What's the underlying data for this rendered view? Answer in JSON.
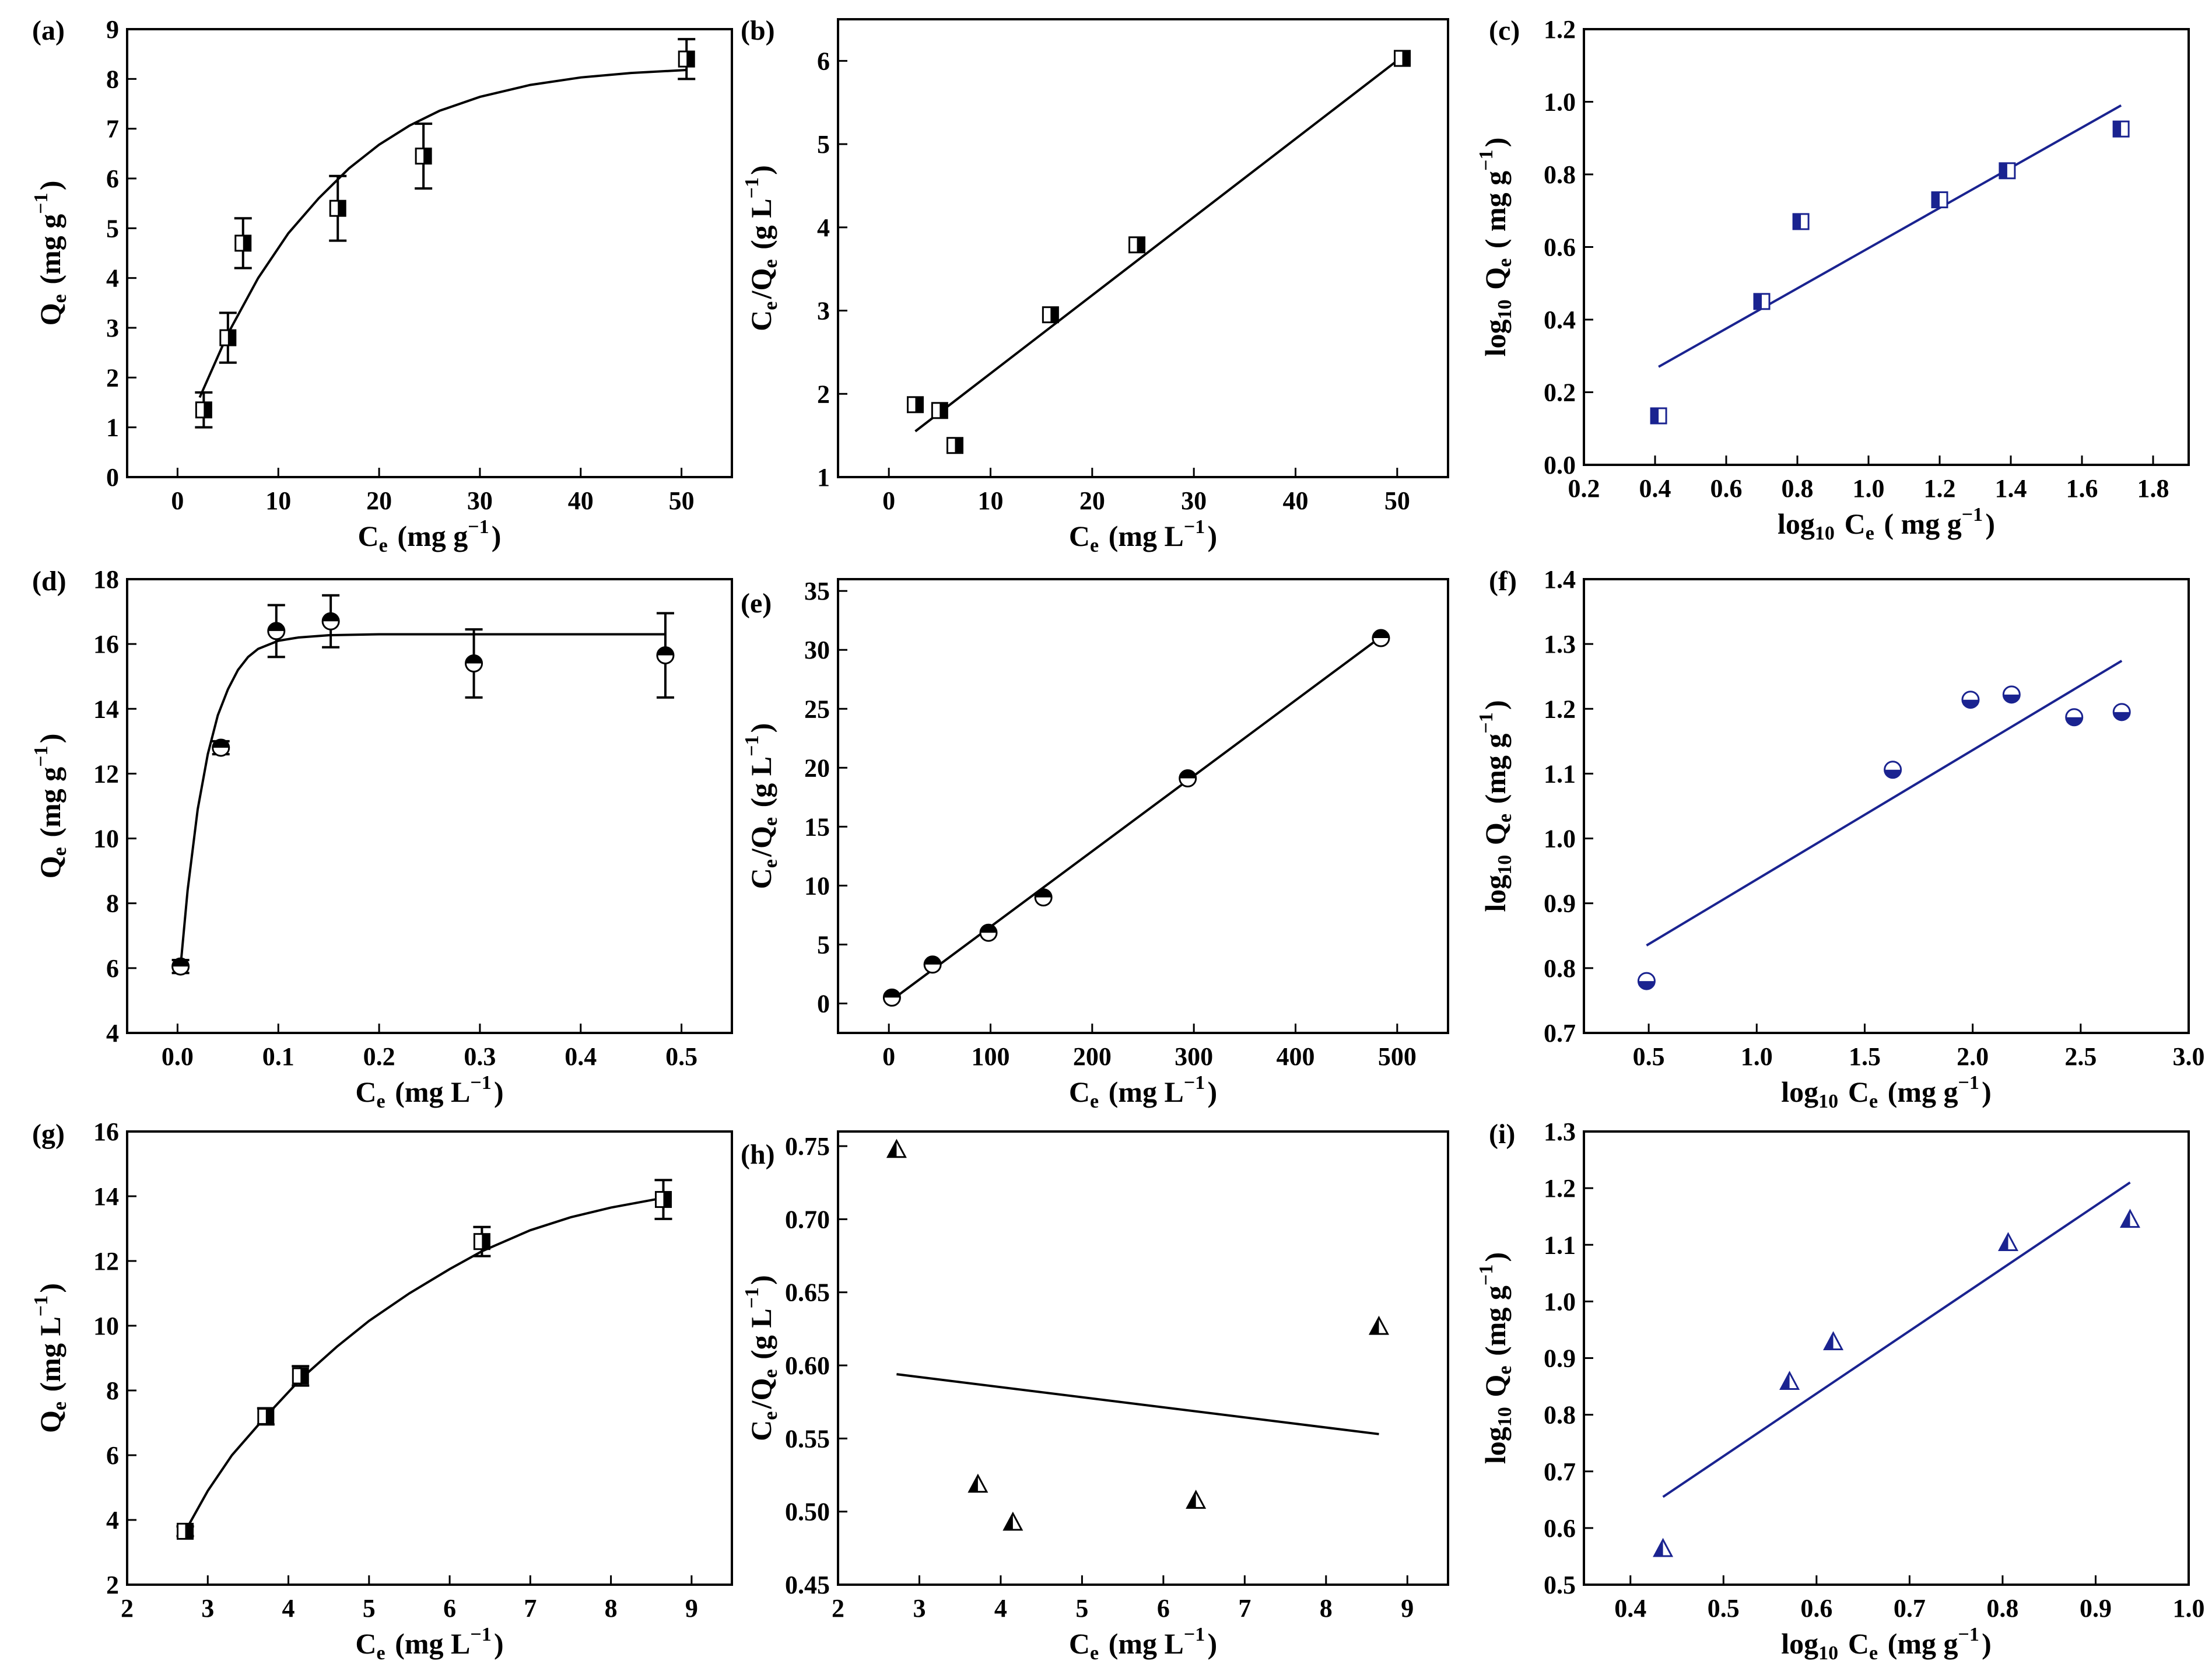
{
  "colors": {
    "black": "#000000",
    "blue": "#1a2390",
    "background": "#ffffff"
  },
  "chart_data": [
    {
      "id": "a",
      "panel_label": "(a)",
      "type": "scatter",
      "xlabel": {
        "parts": [
          [
            "C",
            ""
          ],
          [
            "e",
            "sub"
          ],
          [
            " (mg g",
            ""
          ],
          [
            "−1",
            "sup"
          ],
          [
            ")",
            ""
          ]
        ]
      },
      "ylabel": {
        "parts": [
          [
            "Q",
            ""
          ],
          [
            "e",
            "sub"
          ],
          [
            " (mg g",
            ""
          ],
          [
            "−1",
            "sup"
          ],
          [
            ")",
            ""
          ]
        ]
      },
      "xlim": [
        -5,
        55
      ],
      "ylim": [
        0,
        9
      ],
      "xticks": [
        0,
        10,
        20,
        30,
        40,
        50
      ],
      "yticks": [
        0,
        1,
        2,
        3,
        4,
        5,
        6,
        7,
        8,
        9
      ],
      "marker": "square-half-right",
      "color": "#000000",
      "points": [
        {
          "x": 2.6,
          "y": 1.35,
          "err": 0.35
        },
        {
          "x": 5.0,
          "y": 2.8,
          "err": 0.5
        },
        {
          "x": 6.5,
          "y": 4.7,
          "err": 0.5
        },
        {
          "x": 15.9,
          "y": 5.4,
          "err": 0.65
        },
        {
          "x": 24.4,
          "y": 6.45,
          "err": 0.65
        },
        {
          "x": 50.5,
          "y": 8.4,
          "err": 0.4
        }
      ],
      "fit": {
        "kind": "curve",
        "x": [
          2.2,
          5,
          8,
          11,
          14,
          17,
          20,
          23,
          26,
          30,
          35,
          40,
          45,
          50.5
        ],
        "y": [
          1.6,
          2.88,
          4.0,
          4.9,
          5.6,
          6.2,
          6.68,
          7.06,
          7.36,
          7.64,
          7.88,
          8.03,
          8.12,
          8.18
        ]
      }
    },
    {
      "id": "b",
      "panel_label": "(b)",
      "type": "scatter",
      "xlabel": {
        "parts": [
          [
            "C",
            ""
          ],
          [
            "e",
            "sub"
          ],
          [
            " (mg L",
            ""
          ],
          [
            "−1",
            "sup"
          ],
          [
            ")",
            ""
          ]
        ]
      },
      "ylabel": {
        "parts": [
          [
            "C",
            ""
          ],
          [
            "e",
            "sub"
          ],
          [
            "/Q",
            ""
          ],
          [
            "e",
            "sub"
          ],
          [
            " (g L",
            ""
          ],
          [
            "−1",
            "sup"
          ],
          [
            ")",
            ""
          ]
        ]
      },
      "xlim": [
        -5,
        55
      ],
      "ylim": [
        1,
        6.5
      ],
      "xticks": [
        0,
        10,
        20,
        30,
        40,
        50
      ],
      "yticks": [
        1,
        2,
        3,
        4,
        5,
        6
      ],
      "marker": "square-half-right",
      "color": "#000000",
      "points": [
        {
          "x": 2.6,
          "y": 1.87
        },
        {
          "x": 5.0,
          "y": 1.8
        },
        {
          "x": 6.5,
          "y": 1.38
        },
        {
          "x": 15.9,
          "y": 2.95
        },
        {
          "x": 24.4,
          "y": 3.79
        },
        {
          "x": 50.5,
          "y": 6.03
        }
      ],
      "fit": {
        "kind": "line",
        "x": [
          2.6,
          50.5
        ],
        "y": [
          1.55,
          6.05
        ]
      }
    },
    {
      "id": "c",
      "panel_label": "(c)",
      "type": "scatter",
      "xlabel": {
        "parts": [
          [
            "log",
            ""
          ],
          [
            "10",
            "sub"
          ],
          [
            " C",
            ""
          ],
          [
            "e",
            "sub"
          ],
          [
            " ( mg g",
            ""
          ],
          [
            "−1",
            "sup"
          ],
          [
            ")",
            ""
          ]
        ]
      },
      "ylabel": {
        "parts": [
          [
            "log",
            ""
          ],
          [
            "10",
            "sub"
          ],
          [
            " Q",
            ""
          ],
          [
            "e",
            "sub"
          ],
          [
            " ( mg g",
            ""
          ],
          [
            "−1",
            "sup"
          ],
          [
            ")",
            ""
          ]
        ]
      },
      "xlim": [
        0.2,
        1.9
      ],
      "ylim": [
        0.0,
        1.2
      ],
      "xticks": [
        0.2,
        0.4,
        0.6,
        0.8,
        1.0,
        1.2,
        1.4,
        1.6,
        1.8
      ],
      "yticks": [
        0.0,
        0.2,
        0.4,
        0.6,
        0.8,
        1.0,
        1.2
      ],
      "marker": "square-half-left",
      "color": "#1a2390",
      "points": [
        {
          "x": 0.41,
          "y": 0.135
        },
        {
          "x": 0.7,
          "y": 0.45
        },
        {
          "x": 0.81,
          "y": 0.67
        },
        {
          "x": 1.2,
          "y": 0.73
        },
        {
          "x": 1.39,
          "y": 0.81
        },
        {
          "x": 1.71,
          "y": 0.925
        }
      ],
      "fit": {
        "kind": "line",
        "x": [
          0.41,
          1.71
        ],
        "y": [
          0.27,
          0.99
        ]
      }
    },
    {
      "id": "d",
      "panel_label": "(d)",
      "type": "scatter",
      "xlabel": {
        "parts": [
          [
            "C",
            ""
          ],
          [
            "e",
            "sub"
          ],
          [
            " (mg L",
            ""
          ],
          [
            "−1",
            "sup"
          ],
          [
            ")",
            ""
          ]
        ]
      },
      "ylabel": {
        "parts": [
          [
            "Q",
            ""
          ],
          [
            "e",
            "sub"
          ],
          [
            " (mg g",
            ""
          ],
          [
            "−1",
            "sup"
          ],
          [
            ")",
            ""
          ]
        ]
      },
      "xlim": [
        -0.05,
        0.55
      ],
      "ylim": [
        4,
        18
      ],
      "xticks": [
        0.0,
        0.1,
        0.2,
        0.3,
        0.4,
        0.5
      ],
      "yticks": [
        4,
        6,
        8,
        10,
        12,
        14,
        16,
        18
      ],
      "marker": "circle-half-top",
      "color": "#000000",
      "points": [
        {
          "x": 0.003,
          "y": 6.05,
          "err": 0.2
        },
        {
          "x": 0.043,
          "y": 12.8,
          "err": 0.2
        },
        {
          "x": 0.098,
          "y": 16.4,
          "err": 0.8
        },
        {
          "x": 0.152,
          "y": 16.7,
          "err": 0.8
        },
        {
          "x": 0.294,
          "y": 15.4,
          "err": 1.05
        },
        {
          "x": 0.484,
          "y": 15.65,
          "err": 1.3
        }
      ],
      "fit": {
        "kind": "curve",
        "x": [
          0.003,
          0.01,
          0.02,
          0.03,
          0.04,
          0.05,
          0.06,
          0.07,
          0.08,
          0.1,
          0.12,
          0.15,
          0.2,
          0.3,
          0.484
        ],
        "y": [
          6.05,
          8.4,
          10.9,
          12.6,
          13.8,
          14.6,
          15.2,
          15.6,
          15.85,
          16.1,
          16.2,
          16.27,
          16.3,
          16.3,
          16.3
        ]
      }
    },
    {
      "id": "e",
      "panel_label": "(e)",
      "type": "scatter",
      "xlabel": {
        "parts": [
          [
            "C",
            ""
          ],
          [
            "e",
            "sub"
          ],
          [
            " (mg L",
            ""
          ],
          [
            "−1",
            "sup"
          ],
          [
            ")",
            ""
          ]
        ]
      },
      "ylabel": {
        "parts": [
          [
            "C",
            ""
          ],
          [
            "e",
            "sub"
          ],
          [
            "/Q",
            ""
          ],
          [
            "e",
            "sub"
          ],
          [
            " (g L",
            ""
          ],
          [
            "−1",
            "sup"
          ],
          [
            ")",
            ""
          ]
        ]
      },
      "xlim": [
        -50,
        550
      ],
      "ylim": [
        -2.5,
        36
      ],
      "xticks": [
        0,
        100,
        200,
        300,
        400,
        500
      ],
      "yticks": [
        0,
        5,
        10,
        15,
        20,
        25,
        30,
        35
      ],
      "marker": "circle-half-top",
      "color": "#000000",
      "points": [
        {
          "x": 3,
          "y": 0.5
        },
        {
          "x": 43,
          "y": 3.3
        },
        {
          "x": 98,
          "y": 6.0
        },
        {
          "x": 152,
          "y": 9.0
        },
        {
          "x": 294,
          "y": 19.1
        },
        {
          "x": 484,
          "y": 31.0
        }
      ],
      "fit": {
        "kind": "line",
        "x": [
          3,
          484
        ],
        "y": [
          0.3,
          31.1
        ]
      }
    },
    {
      "id": "f",
      "panel_label": "(f)",
      "type": "scatter",
      "xlabel": {
        "parts": [
          [
            "log",
            ""
          ],
          [
            "10",
            "sub"
          ],
          [
            " C",
            ""
          ],
          [
            "e",
            "sub"
          ],
          [
            " (mg g",
            ""
          ],
          [
            "−1",
            "sup"
          ],
          [
            ")",
            ""
          ]
        ]
      },
      "ylabel": {
        "parts": [
          [
            "log",
            ""
          ],
          [
            "10",
            "sub"
          ],
          [
            " Q",
            ""
          ],
          [
            "e",
            "sub"
          ],
          [
            " (mg g",
            ""
          ],
          [
            "−1",
            "sup"
          ],
          [
            ")",
            ""
          ]
        ]
      },
      "xlim": [
        0.2,
        3.0
      ],
      "ylim": [
        0.7,
        1.4
      ],
      "xticks": [
        0.5,
        1.0,
        1.5,
        2.0,
        2.5,
        3.0
      ],
      "yticks": [
        0.7,
        0.8,
        0.9,
        1.0,
        1.1,
        1.2,
        1.3,
        1.4
      ],
      "marker": "circle-half-bottom",
      "color": "#1a2390",
      "points": [
        {
          "x": 0.49,
          "y": 0.78
        },
        {
          "x": 1.63,
          "y": 1.106
        },
        {
          "x": 1.99,
          "y": 1.214
        },
        {
          "x": 2.18,
          "y": 1.222
        },
        {
          "x": 2.47,
          "y": 1.187
        },
        {
          "x": 2.69,
          "y": 1.195
        }
      ],
      "fit": {
        "kind": "line",
        "x": [
          0.49,
          2.69
        ],
        "y": [
          0.835,
          1.274
        ]
      }
    },
    {
      "id": "g",
      "panel_label": "(g)",
      "type": "scatter",
      "xlabel": {
        "parts": [
          [
            "C",
            ""
          ],
          [
            "e",
            "sub"
          ],
          [
            " (mg L",
            ""
          ],
          [
            "−1",
            "sup"
          ],
          [
            ")",
            ""
          ]
        ]
      },
      "ylabel": {
        "parts": [
          [
            "Q",
            ""
          ],
          [
            "e",
            "sub"
          ],
          [
            " (mg L",
            ""
          ],
          [
            "−1",
            "sup"
          ],
          [
            ")",
            ""
          ]
        ]
      },
      "xlim": [
        2,
        9.5
      ],
      "ylim": [
        2,
        16
      ],
      "xticks": [
        2,
        3,
        4,
        5,
        6,
        7,
        8,
        9
      ],
      "yticks": [
        2,
        4,
        6,
        8,
        10,
        12,
        14,
        16
      ],
      "marker": "square-half-right",
      "color": "#000000",
      "points": [
        {
          "x": 2.72,
          "y": 3.65,
          "err": 0.15
        },
        {
          "x": 3.72,
          "y": 7.2,
          "err": 0.25
        },
        {
          "x": 4.15,
          "y": 8.45,
          "err": 0.3
        },
        {
          "x": 6.4,
          "y": 12.6,
          "err": 0.45
        },
        {
          "x": 8.65,
          "y": 13.9,
          "err": 0.6
        }
      ],
      "fit": {
        "kind": "curve",
        "x": [
          2.72,
          3.0,
          3.3,
          3.72,
          4.15,
          4.6,
          5.0,
          5.5,
          6.0,
          6.4,
          7.0,
          7.5,
          8.0,
          8.65
        ],
        "y": [
          3.65,
          4.9,
          6.0,
          7.2,
          8.35,
          9.35,
          10.15,
          11.0,
          11.75,
          12.3,
          12.95,
          13.35,
          13.65,
          13.95
        ]
      }
    },
    {
      "id": "h",
      "panel_label": "(h)",
      "type": "scatter",
      "xlabel": {
        "parts": [
          [
            "C",
            ""
          ],
          [
            "e",
            "sub"
          ],
          [
            " (mg L",
            ""
          ],
          [
            "−1",
            "sup"
          ],
          [
            ")",
            ""
          ]
        ]
      },
      "ylabel": {
        "parts": [
          [
            "C",
            ""
          ],
          [
            "e",
            "sub"
          ],
          [
            "/Q",
            ""
          ],
          [
            "e",
            "sub"
          ],
          [
            " (g L",
            ""
          ],
          [
            "−1",
            "sup"
          ],
          [
            ")",
            ""
          ]
        ]
      },
      "xlim": [
        2,
        9.5
      ],
      "ylim": [
        0.45,
        0.76
      ],
      "xticks": [
        2,
        3,
        4,
        5,
        6,
        7,
        8,
        9
      ],
      "yticks": [
        0.45,
        0.5,
        0.55,
        0.6,
        0.65,
        0.7,
        0.75
      ],
      "marker": "triangle-half",
      "color": "#000000",
      "points": [
        {
          "x": 2.72,
          "y": 0.747
        },
        {
          "x": 3.72,
          "y": 0.518
        },
        {
          "x": 4.15,
          "y": 0.492
        },
        {
          "x": 6.4,
          "y": 0.507
        },
        {
          "x": 8.65,
          "y": 0.626
        }
      ],
      "fit": {
        "kind": "line",
        "x": [
          2.72,
          8.65
        ],
        "y": [
          0.594,
          0.553
        ]
      }
    },
    {
      "id": "i",
      "panel_label": "(i)",
      "type": "scatter",
      "xlabel": {
        "parts": [
          [
            "log",
            ""
          ],
          [
            "10",
            "sub"
          ],
          [
            " C",
            ""
          ],
          [
            "e",
            "sub"
          ],
          [
            " (mg g",
            ""
          ],
          [
            "−1",
            "sup"
          ],
          [
            ")",
            ""
          ]
        ]
      },
      "ylabel": {
        "parts": [
          [
            "log",
            ""
          ],
          [
            "10",
            "sub"
          ],
          [
            " Q",
            ""
          ],
          [
            "e",
            "sub"
          ],
          [
            " (mg g",
            ""
          ],
          [
            "−1",
            "sup"
          ],
          [
            ")",
            ""
          ]
        ]
      },
      "xlim": [
        0.35,
        1.0
      ],
      "ylim": [
        0.5,
        1.3
      ],
      "xticks": [
        0.4,
        0.5,
        0.6,
        0.7,
        0.8,
        0.9,
        1.0
      ],
      "yticks": [
        0.5,
        0.6,
        0.7,
        0.8,
        0.9,
        1.0,
        1.1,
        1.2,
        1.3
      ],
      "marker": "triangle-half",
      "color": "#1a2390",
      "points": [
        {
          "x": 0.435,
          "y": 0.562
        },
        {
          "x": 0.571,
          "y": 0.857
        },
        {
          "x": 0.618,
          "y": 0.927
        },
        {
          "x": 0.806,
          "y": 1.102
        },
        {
          "x": 0.937,
          "y": 1.143
        }
      ],
      "fit": {
        "kind": "line",
        "x": [
          0.435,
          0.937
        ],
        "y": [
          0.655,
          1.21
        ]
      }
    }
  ]
}
